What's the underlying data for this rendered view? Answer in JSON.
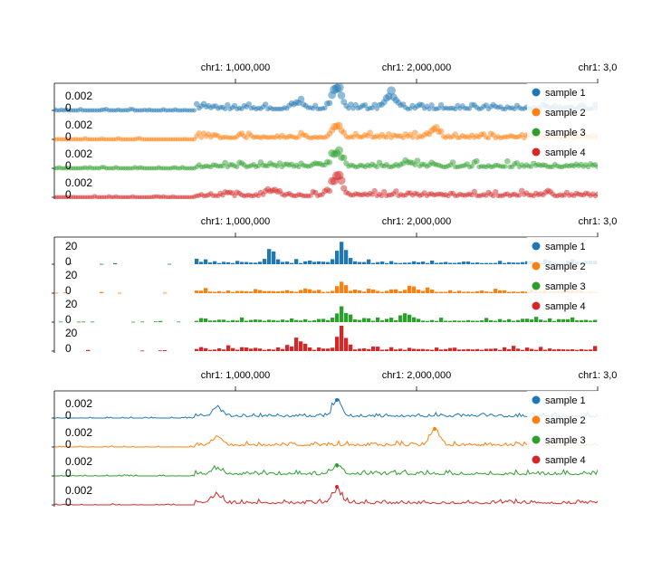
{
  "colors": {
    "sample 1": "#1f77b4",
    "sample 2": "#ff7f0e",
    "sample 3": "#2ca02c",
    "sample 4": "#d62728"
  },
  "chart_data": [
    {
      "type": "scatter",
      "title": "",
      "x_ticks": [
        {
          "value": 1000000,
          "label": "chr1: 1,000,000"
        },
        {
          "value": 2000000,
          "label": "chr1: 2,000,000"
        },
        {
          "value": 3000000,
          "label": "chr1: 3,0"
        }
      ],
      "xlim": [
        -1000000,
        2000000
      ],
      "x_range_bp": [
        -1000000,
        2000000
      ],
      "track_y_ticks": [
        {
          "value": 0.002,
          "label": "0.002"
        },
        {
          "value": 0,
          "label": "0"
        }
      ],
      "legend": {
        "placement": "right",
        "entries": [
          "sample 1",
          "sample 2",
          "sample 3",
          "sample 4"
        ]
      },
      "series": [
        {
          "name": "sample 1",
          "ylim": [
            0,
            0.0035
          ],
          "peaks": [
            [
              0.52,
              0.003
            ],
            [
              0.62,
              0.0025
            ],
            [
              0.45,
              0.001
            ]
          ]
        },
        {
          "name": "sample 2",
          "ylim": [
            0,
            0.0035
          ],
          "peaks": [
            [
              0.52,
              0.0018
            ],
            [
              0.7,
              0.0015
            ]
          ]
        },
        {
          "name": "sample 3",
          "ylim": [
            0,
            0.0035
          ],
          "peaks": [
            [
              0.52,
              0.0025
            ],
            [
              0.65,
              0.001
            ]
          ]
        },
        {
          "name": "sample 4",
          "ylim": [
            0,
            0.0035
          ],
          "peaks": [
            [
              0.52,
              0.003
            ],
            [
              0.4,
              0.001
            ]
          ]
        }
      ]
    },
    {
      "type": "bar",
      "title": "",
      "x_ticks": [
        {
          "value": 1000000,
          "label": "chr1: 1,000,000"
        },
        {
          "value": 2000000,
          "label": "chr1: 2,000,000"
        },
        {
          "value": 3000000,
          "label": "chr1: 3,0"
        }
      ],
      "xlim": [
        -1000000,
        2000000
      ],
      "track_y_ticks": [
        {
          "value": 20,
          "label": "20"
        },
        {
          "value": 0,
          "label": "0"
        }
      ],
      "legend": {
        "placement": "right",
        "entries": [
          "sample 1",
          "sample 2",
          "sample 3",
          "sample 4"
        ]
      },
      "series": [
        {
          "name": "sample 1",
          "ylim": [
            0,
            28
          ],
          "peaks": [
            [
              0.53,
              22
            ],
            [
              0.4,
              14
            ]
          ]
        },
        {
          "name": "sample 2",
          "ylim": [
            0,
            28
          ],
          "peaks": [
            [
              0.53,
              10
            ],
            [
              0.66,
              8
            ]
          ]
        },
        {
          "name": "sample 3",
          "ylim": [
            0,
            28
          ],
          "peaks": [
            [
              0.53,
              16
            ],
            [
              0.65,
              8
            ]
          ]
        },
        {
          "name": "sample 4",
          "ylim": [
            0,
            28
          ],
          "peaks": [
            [
              0.53,
              26
            ],
            [
              0.45,
              12
            ]
          ]
        }
      ]
    },
    {
      "type": "line",
      "title": "",
      "x_ticks": [
        {
          "value": 1000000,
          "label": "chr1: 1,000,000"
        },
        {
          "value": 2000000,
          "label": "chr1: 2,000,000"
        },
        {
          "value": 3000000,
          "label": "chr1: 3,0"
        }
      ],
      "xlim": [
        -1000000,
        2000000
      ],
      "track_y_ticks": [
        {
          "value": 0.002,
          "label": "0.002"
        },
        {
          "value": 0,
          "label": "0"
        }
      ],
      "legend": {
        "placement": "right",
        "entries": [
          "sample 1",
          "sample 2",
          "sample 3",
          "sample 4"
        ]
      },
      "series": [
        {
          "name": "sample 1",
          "ylim": [
            0,
            0.0035
          ],
          "peaks": [
            [
              0.52,
              0.0025
            ],
            [
              0.3,
              0.0015
            ]
          ]
        },
        {
          "name": "sample 2",
          "ylim": [
            0,
            0.0035
          ],
          "peaks": [
            [
              0.7,
              0.0025
            ],
            [
              0.3,
              0.0015
            ]
          ]
        },
        {
          "name": "sample 3",
          "ylim": [
            0,
            0.0035
          ],
          "peaks": [
            [
              0.52,
              0.0015
            ],
            [
              0.3,
              0.0012
            ]
          ]
        },
        {
          "name": "sample 4",
          "ylim": [
            0,
            0.0035
          ],
          "peaks": [
            [
              0.52,
              0.0025
            ],
            [
              0.3,
              0.0015
            ]
          ]
        }
      ]
    }
  ]
}
